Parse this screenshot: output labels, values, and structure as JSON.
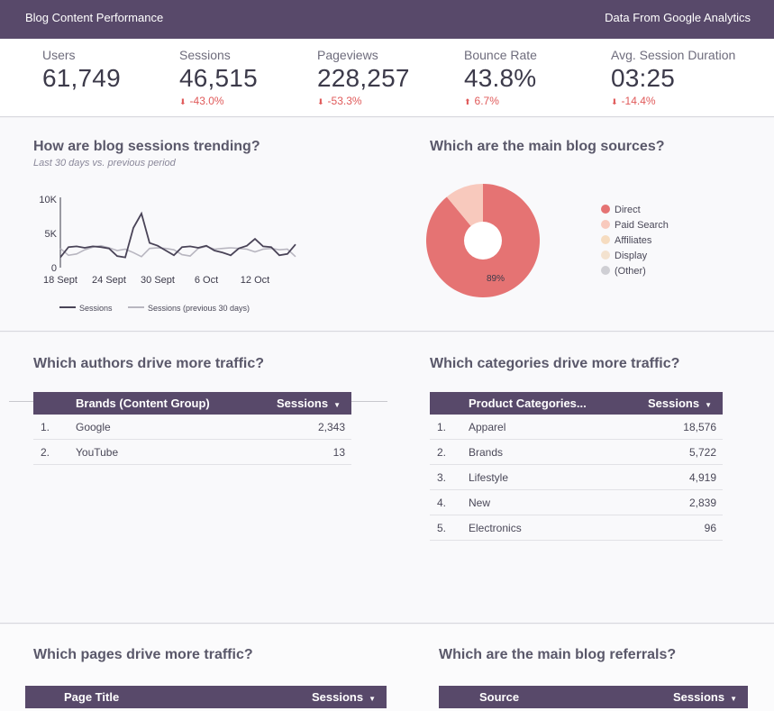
{
  "header": {
    "title": "Blog Content Performance",
    "source": "Data From Google Analytics"
  },
  "kpis": [
    {
      "label": "Users",
      "value": "61,749",
      "delta": "",
      "dir": ""
    },
    {
      "label": "Sessions",
      "value": "46,515",
      "delta": "-43.0%",
      "dir": "down"
    },
    {
      "label": "Pageviews",
      "value": "228,257",
      "delta": "-53.3%",
      "dir": "down"
    },
    {
      "label": "Bounce Rate",
      "value": "43.8%",
      "delta": "6.7%",
      "dir": "up"
    },
    {
      "label": "Avg. Session Duration",
      "value": "03:25",
      "delta": "-14.4%",
      "dir": "down"
    }
  ],
  "trend": {
    "title": "How are blog sessions trending?",
    "subtitle": "Last 30 days vs. previous period",
    "legend_current": "Sessions",
    "legend_previous": "Sessions (previous 30 days)"
  },
  "sources": {
    "title": "Which are the main blog sources?",
    "slice_label": "89%",
    "legend": [
      {
        "label": "Direct",
        "color": "#e57373"
      },
      {
        "label": "Paid Search",
        "color": "#f8c9bd"
      },
      {
        "label": "Affiliates",
        "color": "#f6dcc0"
      },
      {
        "label": "Display",
        "color": "#f3e2cf"
      },
      {
        "label": "(Other)",
        "color": "#cfcfd4"
      }
    ]
  },
  "authors": {
    "title": "Which authors drive more traffic?",
    "col1": "Brands (Content Group)",
    "col2": "Sessions",
    "rows": [
      {
        "idx": "1.",
        "name": "Google",
        "value": "2,343"
      },
      {
        "idx": "2.",
        "name": "YouTube",
        "value": "13"
      }
    ]
  },
  "categories": {
    "title": "Which categories drive more traffic?",
    "col1": "Product Categories...",
    "col2": "Sessions",
    "rows": [
      {
        "idx": "1.",
        "name": "Apparel",
        "value": "18,576"
      },
      {
        "idx": "2.",
        "name": "Brands",
        "value": "5,722"
      },
      {
        "idx": "3.",
        "name": "Lifestyle",
        "value": "4,919"
      },
      {
        "idx": "4.",
        "name": "New",
        "value": "2,839"
      },
      {
        "idx": "5.",
        "name": "Electronics",
        "value": "96"
      }
    ]
  },
  "pages": {
    "title": "Which pages drive more traffic?",
    "col1": "Page Title",
    "col2": "Sessions"
  },
  "referrals": {
    "title": "Which are the main blog referrals?",
    "col1": "Source",
    "col2": "Sessions"
  },
  "chart_data": [
    {
      "type": "line",
      "x_ticks": [
        "18 Sept",
        "24 Sept",
        "30 Sept",
        "6 Oct",
        "12 Oct"
      ],
      "y_ticks": [
        "0",
        "5K",
        "10K"
      ],
      "ylim": [
        0,
        10000
      ],
      "series": [
        {
          "name": "Sessions",
          "color": "#4a4458",
          "values": [
            1500,
            3000,
            3100,
            2900,
            3100,
            3000,
            2800,
            1700,
            1500,
            5800,
            7900,
            3600,
            3200,
            2500,
            1800,
            3000,
            3100,
            2900,
            3200,
            2500,
            2200,
            1800,
            2800,
            3200,
            4200,
            3100,
            3000,
            1800,
            2000,
            3400
          ]
        },
        {
          "name": "Sessions (previous 30 days)",
          "color": "#b8b6c0",
          "values": [
            2800,
            1800,
            2000,
            2600,
            3000,
            3200,
            2900,
            2500,
            2700,
            2200,
            1600,
            2800,
            2900,
            2800,
            2600,
            1900,
            1700,
            2800,
            3100,
            2700,
            2800,
            2900,
            2800,
            2700,
            2300,
            2700,
            2800,
            2600,
            2700,
            1600
          ]
        }
      ]
    },
    {
      "type": "pie",
      "categories": [
        "Direct",
        "Paid Search",
        "Affiliates",
        "Display",
        "(Other)"
      ],
      "values": [
        89,
        11,
        0,
        0,
        0
      ],
      "donut": true
    }
  ]
}
